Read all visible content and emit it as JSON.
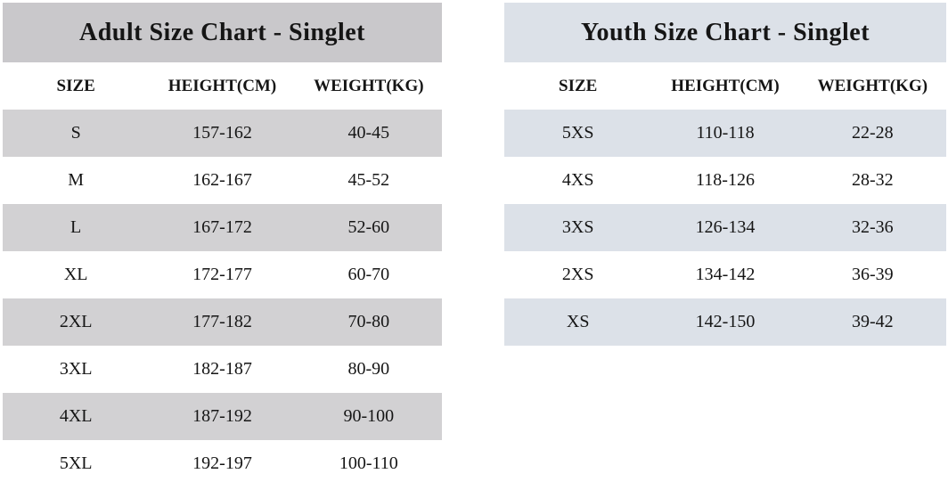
{
  "page": {
    "background_color": "#ffffff",
    "text_color": "#151515"
  },
  "chart_data": [
    {
      "type": "table",
      "title": "Adult Size Chart - Singlet",
      "columns": [
        "SIZE",
        "HEIGHT(CM)",
        "WEIGHT(KG)"
      ],
      "rows": [
        [
          "S",
          "157-162",
          "40-45"
        ],
        [
          "M",
          "162-167",
          "45-52"
        ],
        [
          "L",
          "167-172",
          "52-60"
        ],
        [
          "XL",
          "172-177",
          "60-70"
        ],
        [
          "2XL",
          "177-182",
          "70-80"
        ],
        [
          "3XL",
          "182-187",
          "80-90"
        ],
        [
          "4XL",
          "187-192",
          "90-100"
        ],
        [
          "5XL",
          "192-197",
          "100-110"
        ]
      ],
      "layout_hints": {
        "title_bg": "#c9c8cb",
        "row_alt_bg": "#d2d1d3",
        "row_bg": "#ffffff",
        "shaded_rows": "odd rows starting with first (S, L, 2XL, 4XL)"
      }
    },
    {
      "type": "table",
      "title": "Youth Size Chart - Singlet",
      "columns": [
        "SIZE",
        "HEIGHT(CM)",
        "WEIGHT(KG)"
      ],
      "rows": [
        [
          "5XS",
          "110-118",
          "22-28"
        ],
        [
          "4XS",
          "118-126",
          "28-32"
        ],
        [
          "3XS",
          "126-134",
          "32-36"
        ],
        [
          "2XS",
          "134-142",
          "36-39"
        ],
        [
          "XS",
          "142-150",
          "39-42"
        ]
      ],
      "layout_hints": {
        "title_bg": "#dce1e8",
        "row_alt_bg": "#dce1e8",
        "row_bg": "#ffffff",
        "shaded_rows": "odd rows starting with first (5XS, 3XS, XS)"
      }
    }
  ]
}
